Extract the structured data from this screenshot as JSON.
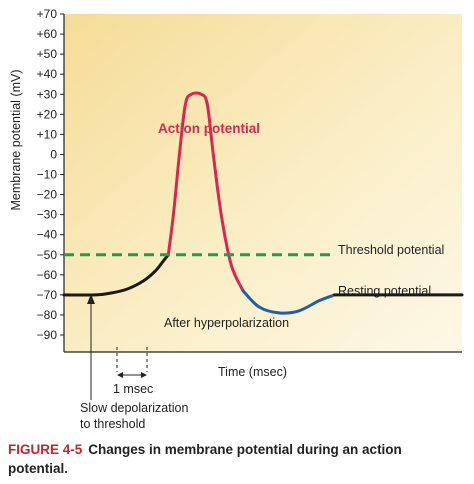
{
  "chart_data": {
    "type": "line",
    "ylabel": "Membrane potential (mV)",
    "xlabel": "Time (msec)",
    "ylim": [
      -90,
      70
    ],
    "ytick_step": 10,
    "grid": false,
    "series": [
      {
        "name": "Membrane potential",
        "segments": [
          {
            "phase": "resting",
            "color": "#1a1a1a",
            "points": [
              [
                0,
                -70
              ],
              [
                0.8,
                -70
              ],
              [
                1.2,
                -69
              ],
              [
                1.6,
                -67
              ],
              [
                2.0,
                -63
              ],
              [
                2.3,
                -58
              ],
              [
                2.5,
                -53
              ],
              [
                2.62,
                -50
              ]
            ]
          },
          {
            "phase": "action",
            "color": "#d7294f",
            "points": [
              [
                2.62,
                -50
              ],
              [
                2.75,
                -30
              ],
              [
                2.9,
                0
              ],
              [
                3.05,
                25
              ],
              [
                3.2,
                30
              ],
              [
                3.45,
                30
              ],
              [
                3.6,
                25
              ],
              [
                3.75,
                0
              ],
              [
                3.95,
                -30
              ],
              [
                4.2,
                -55
              ],
              [
                4.5,
                -68
              ]
            ]
          },
          {
            "phase": "after-hyperpolarization",
            "color": "#1f5fa8",
            "points": [
              [
                4.5,
                -68
              ],
              [
                4.9,
                -76
              ],
              [
                5.4,
                -79
              ],
              [
                5.9,
                -78
              ],
              [
                6.4,
                -73
              ],
              [
                6.8,
                -70
              ]
            ]
          },
          {
            "phase": "recovery",
            "color": "#1a1a1a",
            "points": [
              [
                6.8,
                -70
              ],
              [
                10,
                -70
              ]
            ]
          }
        ]
      }
    ],
    "threshold": {
      "value": -50,
      "color": "#1aa04b",
      "label": "Threshold potential"
    },
    "annotations": {
      "action_potential": "Action potential",
      "resting_potential": "Resting potential",
      "after_hyperpolarization": "After hyperpolarization",
      "one_msec": "1 msec",
      "slow_depolarization_line1": "Slow depolarization",
      "slow_depolarization_line2": "to threshold"
    },
    "colors": {
      "background": "#fbf0cb",
      "action": "#d7294f",
      "after_hyperpolarization": "#1f5fa8",
      "resting": "#1a1a1a",
      "threshold": "#1aa04b"
    }
  },
  "caption": {
    "label": "FIGURE 4-5",
    "text": "Changes in membrane potential during an action potential."
  }
}
